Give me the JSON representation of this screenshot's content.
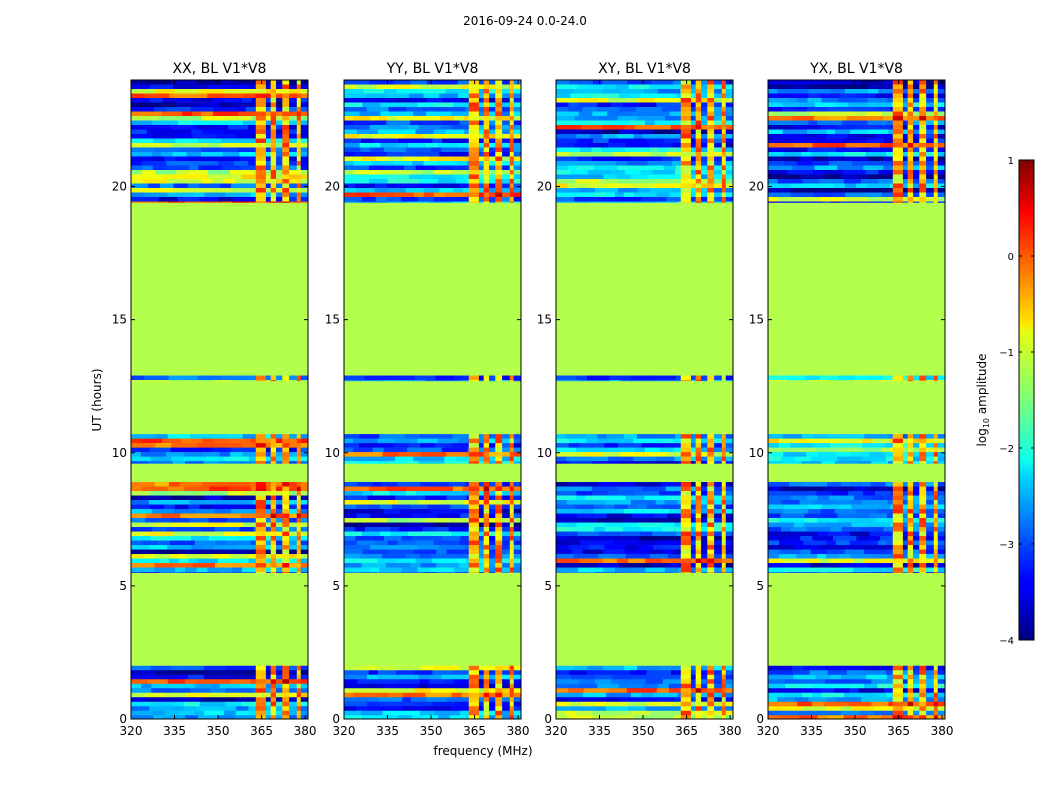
{
  "figure": {
    "suptitle": "2016-09-24 0.0-24.0",
    "xlabel": "frequency (MHz)",
    "ylabel": "UT (hours)"
  },
  "chart_data": {
    "type": "heatmap",
    "title": "2016-09-24 0.0-24.0",
    "xlabel": "frequency (MHz)",
    "ylabel": "UT (hours)",
    "xlim": [
      320,
      381
    ],
    "ylim": [
      0,
      24
    ],
    "xticks": [
      320,
      335,
      350,
      365,
      380
    ],
    "yticks": [
      0,
      5,
      10,
      15,
      20
    ],
    "panels": [
      {
        "title": "XX, BL V1*V8"
      },
      {
        "title": "YY, BL V1*V8"
      },
      {
        "title": "XY, BL V1*V8"
      },
      {
        "title": "YX, BL V1*V8"
      }
    ],
    "colorbar": {
      "label": "log10 amplitude",
      "label_text": "log",
      "label_sub": "10",
      "label_rest": " amplitude",
      "range": [
        -4,
        1
      ],
      "ticks": [
        1,
        0,
        -1,
        -2,
        -3,
        -4
      ],
      "colormap": "jet"
    },
    "masked_value": -1.25,
    "data_time_ranges": [
      [
        0.0,
        2.0
      ],
      [
        5.5,
        8.9
      ],
      [
        9.6,
        10.7
      ],
      [
        12.7,
        12.9
      ],
      [
        19.4,
        24.0
      ]
    ],
    "rfi_bands_mhz": [
      [
        363.0,
        366.5
      ],
      [
        368.0,
        370.0
      ],
      [
        372.0,
        374.5
      ],
      [
        377.0,
        378.5
      ]
    ],
    "flagged_freq_ranges_mhz": [
      [
        366.5,
        368.0
      ],
      [
        370.0,
        372.0
      ],
      [
        374.5,
        377.0
      ],
      [
        378.5,
        381.0
      ]
    ]
  }
}
